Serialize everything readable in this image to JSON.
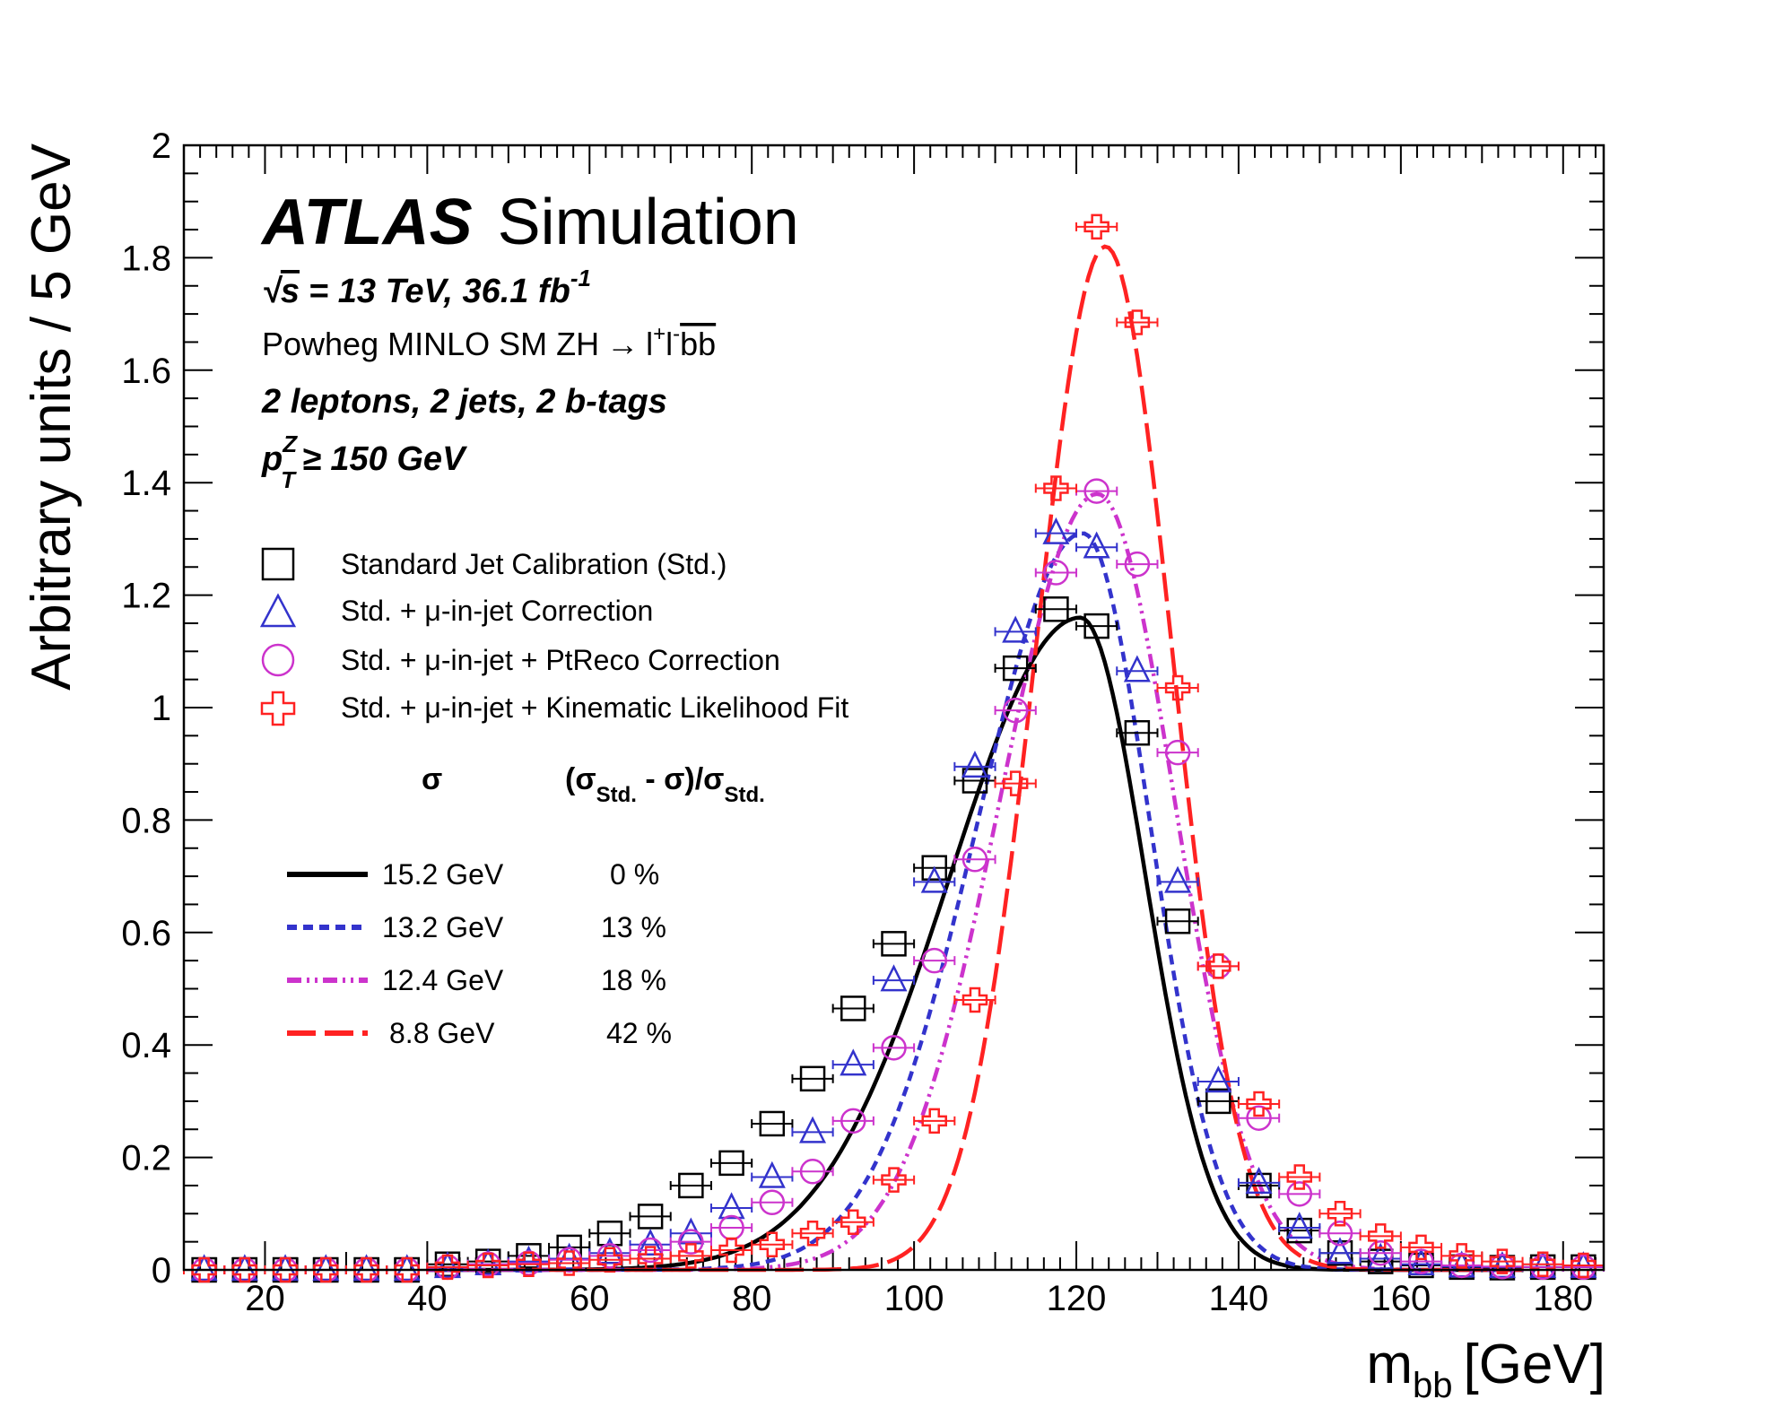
{
  "chart_data": {
    "type": "scatter",
    "xlabel_main": "m",
    "xlabel_sub": "bb",
    "xlabel_unit": "[GeV]",
    "ylabel": "Arbitrary units / 5 GeV",
    "xlim": [
      10,
      185
    ],
    "ylim": [
      0,
      2
    ],
    "x_ticks": [
      20,
      40,
      60,
      80,
      100,
      120,
      140,
      160,
      180
    ],
    "y_ticks": [
      "0",
      "0.2",
      "0.4",
      "0.6",
      "0.8",
      "1",
      "1.2",
      "1.4",
      "1.6",
      "1.8",
      "2"
    ],
    "annotations": {
      "atlas": "ATLAS",
      "simulation": "Simulation",
      "energy_sqrt": "√",
      "energy_s": "s",
      "energy_rest": "= 13 TeV, 36.1 fb",
      "energy_sup": "-1",
      "process_prefix": "Powheg MINLO SM ZH",
      "process_arrow": "→",
      "process_l1": "l",
      "process_sup1": "+",
      "process_l2": "l",
      "process_sup2": "-",
      "process_bb": "bb",
      "selection": "2 leptons, 2 jets, 2 b-tags",
      "pt_p": "p",
      "pt_sup": "Z",
      "pt_sub": "T",
      "pt_rest": "≥ 150 GeV"
    },
    "marker_legend": [
      {
        "text_pre": "Standard Jet Calibration (Std.)",
        "mu": "",
        "text_post": ""
      },
      {
        "text_pre": "Std. + ",
        "mu": "μ",
        "text_post": "-in-jet Correction"
      },
      {
        "text_pre": "Std. + ",
        "mu": "μ",
        "text_post": "-in-jet + PtReco Correction"
      },
      {
        "text_pre": "Std. + ",
        "mu": "μ",
        "text_post": "-in-jet + Kinematic Likelihood Fit"
      }
    ],
    "table_header": {
      "sigma": "σ",
      "ratio_open": "(σ",
      "ratio_sub1": "Std.",
      "ratio_mid": " - σ)/σ",
      "ratio_sub2": "Std."
    },
    "fit_legend": [
      {
        "sigma": "15.2 GeV",
        "improvement": "0 %"
      },
      {
        "sigma": "13.2 GeV",
        "improvement": "13 %"
      },
      {
        "sigma": "12.4 GeV",
        "improvement": "18 %"
      },
      {
        "sigma": "8.8 GeV",
        "improvement": "42 %"
      }
    ],
    "series": [
      {
        "marker": "square",
        "color": "#000000",
        "x": [
          12.5,
          17.5,
          22.5,
          27.5,
          32.5,
          37.5,
          42.5,
          47.5,
          52.5,
          57.5,
          62.5,
          67.5,
          72.5,
          77.5,
          82.5,
          87.5,
          92.5,
          97.5,
          102.5,
          107.5,
          112.5,
          117.5,
          122.5,
          127.5,
          132.5,
          137.5,
          142.5,
          147.5,
          152.5,
          157.5,
          162.5,
          167.5,
          172.5,
          177.5,
          182.5
        ],
        "y": [
          0,
          0,
          0,
          0,
          0,
          0,
          0.01,
          0.015,
          0.025,
          0.04,
          0.065,
          0.095,
          0.15,
          0.19,
          0.26,
          0.34,
          0.465,
          0.58,
          0.715,
          0.87,
          1.07,
          1.175,
          1.145,
          0.955,
          0.62,
          0.3,
          0.15,
          0.07,
          0.03,
          0.015,
          0.008,
          0.005,
          0.004,
          0.005,
          0.005
        ],
        "xerr": 2.5
      },
      {
        "marker": "triangle",
        "color": "#3333cc",
        "x": [
          12.5,
          17.5,
          22.5,
          27.5,
          32.5,
          37.5,
          42.5,
          47.5,
          52.5,
          57.5,
          62.5,
          67.5,
          72.5,
          77.5,
          82.5,
          87.5,
          92.5,
          97.5,
          102.5,
          107.5,
          112.5,
          117.5,
          122.5,
          127.5,
          132.5,
          137.5,
          142.5,
          147.5,
          152.5,
          157.5,
          162.5,
          167.5,
          172.5,
          177.5,
          182.5
        ],
        "y": [
          0,
          0,
          0,
          0,
          0,
          0,
          0.005,
          0.01,
          0.015,
          0.02,
          0.03,
          0.045,
          0.065,
          0.11,
          0.165,
          0.245,
          0.365,
          0.515,
          0.69,
          0.895,
          1.135,
          1.31,
          1.285,
          1.065,
          0.69,
          0.335,
          0.155,
          0.075,
          0.03,
          0.02,
          0.01,
          0.006,
          0.005,
          0.005,
          0.005
        ],
        "xerr": 2.5
      },
      {
        "marker": "circle",
        "color": "#cc33cc",
        "x": [
          12.5,
          17.5,
          22.5,
          27.5,
          32.5,
          37.5,
          42.5,
          47.5,
          52.5,
          57.5,
          62.5,
          67.5,
          72.5,
          77.5,
          82.5,
          87.5,
          92.5,
          97.5,
          102.5,
          107.5,
          112.5,
          117.5,
          122.5,
          127.5,
          132.5,
          137.5,
          142.5,
          147.5,
          152.5,
          157.5,
          162.5,
          167.5,
          172.5,
          177.5,
          182.5
        ],
        "y": [
          0,
          0,
          0,
          0,
          0,
          0,
          0.005,
          0.01,
          0.012,
          0.018,
          0.025,
          0.035,
          0.05,
          0.075,
          0.12,
          0.175,
          0.265,
          0.395,
          0.55,
          0.73,
          0.995,
          1.24,
          1.385,
          1.255,
          0.92,
          0.54,
          0.27,
          0.135,
          0.065,
          0.03,
          0.015,
          0.008,
          0.006,
          0.005,
          0.005
        ],
        "xerr": 2.5
      },
      {
        "marker": "cross",
        "color": "#ff2222",
        "x": [
          12.5,
          17.5,
          22.5,
          27.5,
          32.5,
          37.5,
          42.5,
          47.5,
          52.5,
          57.5,
          62.5,
          67.5,
          72.5,
          77.5,
          82.5,
          87.5,
          92.5,
          97.5,
          102.5,
          107.5,
          112.5,
          117.5,
          122.5,
          127.5,
          132.5,
          137.5,
          142.5,
          147.5,
          152.5,
          157.5,
          162.5,
          167.5,
          172.5,
          177.5,
          182.5
        ],
        "y": [
          0,
          0,
          0,
          0,
          0,
          0,
          0.005,
          0.008,
          0.01,
          0.012,
          0.018,
          0.02,
          0.025,
          0.035,
          0.045,
          0.065,
          0.085,
          0.16,
          0.265,
          0.48,
          0.865,
          1.39,
          1.855,
          1.685,
          1.035,
          0.54,
          0.295,
          0.165,
          0.1,
          0.06,
          0.04,
          0.025,
          0.015,
          0.01,
          0.008
        ],
        "xerr": 2.5
      }
    ],
    "fits": [
      {
        "style": "solid",
        "color": "#000000",
        "mu": 120.5,
        "sigma_left": 16.0,
        "sigma_right": 8.0,
        "peak": 1.16,
        "range": [
          40,
          175
        ]
      },
      {
        "style": "dashed",
        "color": "#3333cc",
        "mu": 120.8,
        "sigma_left": 13.0,
        "sigma_right": 8.3,
        "peak": 1.31,
        "range": [
          40,
          175
        ]
      },
      {
        "style": "dashdotdot",
        "color": "#cc33cc",
        "mu": 122.6,
        "sigma_left": 12.0,
        "sigma_right": 9.5,
        "peak": 1.38,
        "range": [
          40,
          175
        ]
      },
      {
        "style": "longdash",
        "color": "#ff2222",
        "mu": 123.6,
        "sigma_left": 8.6,
        "sigma_right": 8.2,
        "peak": 1.82,
        "range": [
          55,
          175
        ]
      }
    ]
  }
}
